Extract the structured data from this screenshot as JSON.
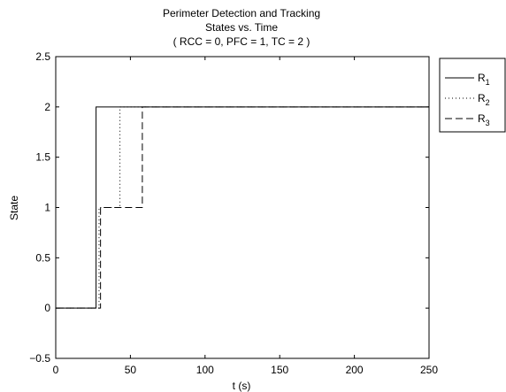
{
  "chart_data": {
    "type": "line",
    "title_lines": [
      "Perimeter Detection and Tracking",
      "States vs. Time",
      "( RCC = 0, PFC = 1, TC = 2 )"
    ],
    "xlabel": "t (s)",
    "ylabel": "State",
    "xlim": [
      0,
      250
    ],
    "ylim": [
      -0.5,
      2.5
    ],
    "xticks": [
      0,
      50,
      100,
      150,
      200,
      250
    ],
    "yticks": [
      -0.5,
      0,
      0.5,
      1,
      1.5,
      2,
      2.5
    ],
    "xtick_labels": [
      "0",
      "50",
      "100",
      "150",
      "200",
      "250"
    ],
    "ytick_labels": [
      "−0.5",
      "0",
      "0.5",
      "1",
      "1.5",
      "2",
      "2.5"
    ],
    "grid": false,
    "legend_position": "outside-top-right",
    "series": [
      {
        "name": "R",
        "subscript": "1",
        "style": "solid",
        "color": "#000000",
        "points": [
          [
            0,
            0
          ],
          [
            27,
            0
          ],
          [
            27,
            2
          ],
          [
            250,
            2
          ]
        ]
      },
      {
        "name": "R",
        "subscript": "2",
        "style": "dotted",
        "color": "#000000",
        "points": [
          [
            0,
            0
          ],
          [
            29,
            0
          ],
          [
            29,
            1
          ],
          [
            43,
            1
          ],
          [
            43,
            2
          ],
          [
            250,
            2
          ]
        ]
      },
      {
        "name": "R",
        "subscript": "3",
        "style": "dashed",
        "color": "#000000",
        "points": [
          [
            0,
            0
          ],
          [
            30,
            0
          ],
          [
            30,
            1
          ],
          [
            58,
            1
          ],
          [
            58,
            2
          ],
          [
            250,
            2
          ]
        ]
      }
    ]
  }
}
